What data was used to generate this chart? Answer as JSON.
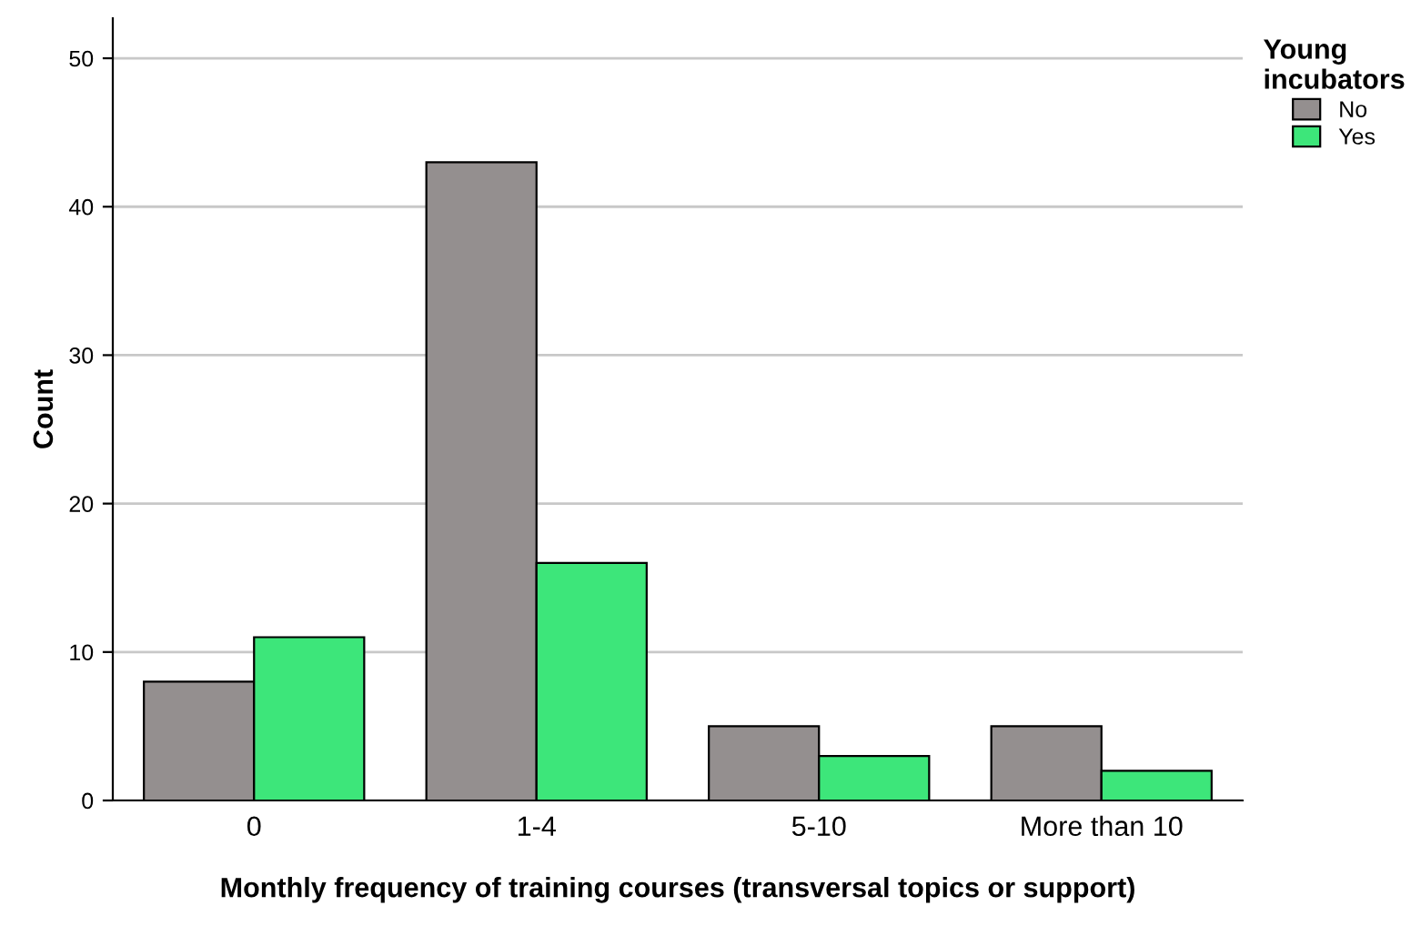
{
  "chart_data": {
    "type": "bar",
    "xlabel": "Monthly frequency of training courses (transversal topics or support)",
    "ylabel": "Count",
    "legend_title": "Young incubators",
    "categories": [
      "0",
      "1-4",
      "5-10",
      "More than 10"
    ],
    "series": [
      {
        "name": "No",
        "color": "#948f8f",
        "values": [
          8,
          43,
          5,
          5
        ]
      },
      {
        "name": "Yes",
        "color": "#3de67a",
        "values": [
          11,
          16,
          3,
          2
        ]
      }
    ],
    "ylim": [
      0,
      52.7
    ],
    "yticks": [
      0,
      10,
      20,
      30,
      40,
      50
    ],
    "grid": "y",
    "legend": "top right"
  }
}
